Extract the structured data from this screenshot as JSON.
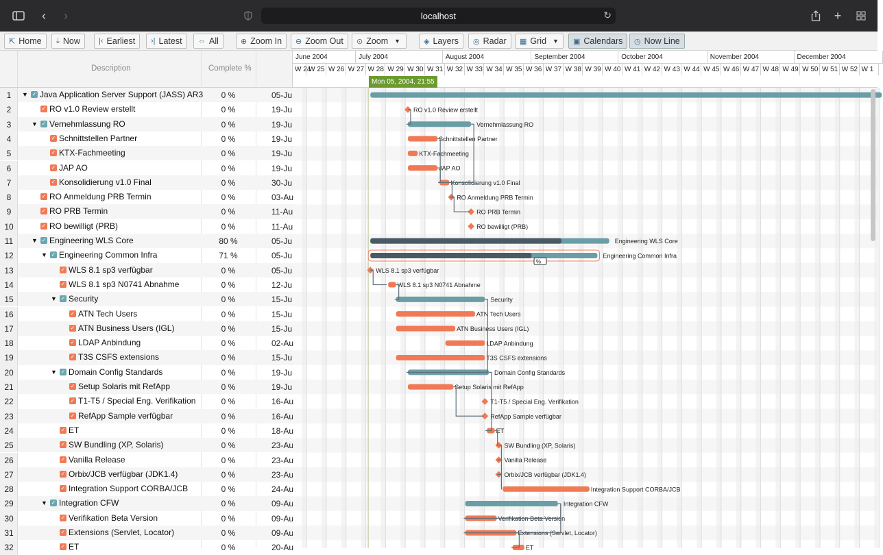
{
  "browser": {
    "url": "localhost"
  },
  "toolbar": {
    "buttons": [
      {
        "label": "Home",
        "icon": "home-icon"
      },
      {
        "label": "Now",
        "icon": "now-icon"
      },
      {
        "label": "Earliest",
        "icon": "earliest-icon"
      },
      {
        "label": "Latest",
        "icon": "latest-icon"
      },
      {
        "label": "All",
        "icon": "all-icon"
      },
      {
        "label": "Zoom In",
        "icon": "zoom-in-icon"
      },
      {
        "label": "Zoom Out",
        "icon": "zoom-out-icon"
      },
      {
        "label": "Zoom",
        "icon": "zoom-icon"
      },
      {
        "label": "Layers",
        "icon": "layers-icon"
      },
      {
        "label": "Radar",
        "icon": "radar-icon"
      },
      {
        "label": "Grid",
        "icon": "grid-icon"
      },
      {
        "label": "Calendars",
        "icon": "calendar-icon"
      },
      {
        "label": "Now Line",
        "icon": "clock-icon"
      }
    ]
  },
  "grid": {
    "headers": {
      "description": "Description",
      "complete": "Complete %"
    },
    "rows": [
      {
        "num": "1",
        "desc": "Java Application Server Support (JASS) AR3",
        "pct": "0 %",
        "start": "05-Ju",
        "level": 0,
        "toggle": true,
        "summary": true
      },
      {
        "num": "2",
        "desc": "RO v1.0 Review erstellt",
        "pct": "0 %",
        "start": "19-Ju",
        "level": 1,
        "toggle": false,
        "summary": false
      },
      {
        "num": "3",
        "desc": "Vernehmlassung RO",
        "pct": "0 %",
        "start": "19-Ju",
        "level": 1,
        "toggle": true,
        "summary": true
      },
      {
        "num": "4",
        "desc": "Schnittstellen Partner",
        "pct": "0 %",
        "start": "19-Ju",
        "level": 2,
        "toggle": false,
        "summary": false
      },
      {
        "num": "5",
        "desc": "KTX-Fachmeeting",
        "pct": "0 %",
        "start": "19-Ju",
        "level": 2,
        "toggle": false,
        "summary": false
      },
      {
        "num": "6",
        "desc": "JAP AO",
        "pct": "0 %",
        "start": "19-Ju",
        "level": 2,
        "toggle": false,
        "summary": false
      },
      {
        "num": "7",
        "desc": "Konsolidierung v1.0 Final",
        "pct": "0 %",
        "start": "30-Ju",
        "level": 2,
        "toggle": false,
        "summary": false
      },
      {
        "num": "8",
        "desc": "RO Anmeldung PRB Termin",
        "pct": "0 %",
        "start": "03-Au",
        "level": 1,
        "toggle": false,
        "summary": false
      },
      {
        "num": "9",
        "desc": "RO PRB Termin",
        "pct": "0 %",
        "start": "11-Au",
        "level": 1,
        "toggle": false,
        "summary": false
      },
      {
        "num": "10",
        "desc": "RO bewilligt (PRB)",
        "pct": "0 %",
        "start": "11-Au",
        "level": 1,
        "toggle": false,
        "summary": false
      },
      {
        "num": "11",
        "desc": "Engineering WLS Core",
        "pct": "80 %",
        "start": "05-Ju",
        "level": 1,
        "toggle": true,
        "summary": true
      },
      {
        "num": "12",
        "desc": "Engineering Common Infra",
        "pct": "71 %",
        "start": "05-Ju",
        "level": 2,
        "toggle": true,
        "summary": true
      },
      {
        "num": "13",
        "desc": "WLS 8.1 sp3 verfügbar",
        "pct": "0 %",
        "start": "05-Ju",
        "level": 3,
        "toggle": false,
        "summary": false
      },
      {
        "num": "14",
        "desc": "WLS 8.1 sp3 N0741 Abnahme",
        "pct": "0 %",
        "start": "12-Ju",
        "level": 3,
        "toggle": false,
        "summary": false
      },
      {
        "num": "15",
        "desc": "Security",
        "pct": "0 %",
        "start": "15-Ju",
        "level": 3,
        "toggle": true,
        "summary": true
      },
      {
        "num": "16",
        "desc": "ATN Tech Users",
        "pct": "0 %",
        "start": "15-Ju",
        "level": 4,
        "toggle": false,
        "summary": false
      },
      {
        "num": "17",
        "desc": "ATN Business Users (IGL)",
        "pct": "0 %",
        "start": "15-Ju",
        "level": 4,
        "toggle": false,
        "summary": false
      },
      {
        "num": "18",
        "desc": "LDAP Anbindung",
        "pct": "0 %",
        "start": "02-Au",
        "level": 4,
        "toggle": false,
        "summary": false
      },
      {
        "num": "19",
        "desc": "T3S CSFS extensions",
        "pct": "0 %",
        "start": "15-Ju",
        "level": 4,
        "toggle": false,
        "summary": false
      },
      {
        "num": "20",
        "desc": "Domain Config Standards",
        "pct": "0 %",
        "start": "19-Ju",
        "level": 3,
        "toggle": true,
        "summary": true
      },
      {
        "num": "21",
        "desc": "Setup Solaris mit RefApp",
        "pct": "0 %",
        "start": "19-Ju",
        "level": 4,
        "toggle": false,
        "summary": false
      },
      {
        "num": "22",
        "desc": "T1-T5 / Special Eng. Verifikation",
        "pct": "0 %",
        "start": "16-Au",
        "level": 4,
        "toggle": false,
        "summary": false
      },
      {
        "num": "23",
        "desc": "RefApp Sample verfügbar",
        "pct": "0 %",
        "start": "16-Au",
        "level": 4,
        "toggle": false,
        "summary": false
      },
      {
        "num": "24",
        "desc": "ET",
        "pct": "0 %",
        "start": "18-Au",
        "level": 3,
        "toggle": false,
        "summary": false
      },
      {
        "num": "25",
        "desc": "SW Bundling (XP, Solaris)",
        "pct": "0 %",
        "start": "23-Au",
        "level": 3,
        "toggle": false,
        "summary": false
      },
      {
        "num": "26",
        "desc": "Vanilla Release",
        "pct": "0 %",
        "start": "23-Au",
        "level": 3,
        "toggle": false,
        "summary": false
      },
      {
        "num": "27",
        "desc": "Orbix/JCB verfügbar (JDK1.4)",
        "pct": "0 %",
        "start": "23-Au",
        "level": 3,
        "toggle": false,
        "summary": false
      },
      {
        "num": "28",
        "desc": "Integration Support CORBA/JCB",
        "pct": "0 %",
        "start": "24-Au",
        "level": 3,
        "toggle": false,
        "summary": false
      },
      {
        "num": "29",
        "desc": "Integration CFW",
        "pct": "0 %",
        "start": "09-Au",
        "level": 2,
        "toggle": true,
        "summary": true
      },
      {
        "num": "30",
        "desc": "Verifikation Beta Version",
        "pct": "0 %",
        "start": "09-Au",
        "level": 3,
        "toggle": false,
        "summary": false
      },
      {
        "num": "31",
        "desc": "Extensions (Servlet, Locator)",
        "pct": "0 %",
        "start": "09-Au",
        "level": 3,
        "toggle": false,
        "summary": false
      },
      {
        "num": "32",
        "desc": "ET",
        "pct": "0 %",
        "start": "20-Au",
        "level": 3,
        "toggle": false,
        "summary": false
      }
    ]
  },
  "timeline": {
    "now_label": "Mon 05, 2004, 21:55",
    "months": [
      "June 2004",
      "July 2004",
      "August 2004",
      "September 2004",
      "October 2004",
      "November 2004",
      "December 2004"
    ],
    "weeks": [
      "W 24",
      "W 25",
      "W 26",
      "W 27",
      "W 28",
      "W 29",
      "W 30",
      "W 31",
      "W 32",
      "W 33",
      "W 34",
      "W 35",
      "W 36",
      "W 37",
      "W 38",
      "W 39",
      "W 40",
      "W 41",
      "W 42",
      "W 43",
      "W 44",
      "W 45",
      "W 46",
      "W 47",
      "W 48",
      "W 49",
      "W 50",
      "W 51",
      "W 52",
      "W 1"
    ],
    "colors": {
      "summary": "#6a9ea6",
      "summary_dark": "#4a5a64",
      "task": "#f07a55",
      "link": "#5f6f78"
    },
    "bars": [
      {
        "row": 0,
        "type": "summary",
        "start_week": 4.1,
        "end_week": 30.0,
        "label": ""
      },
      {
        "row": 1,
        "type": "milestone",
        "start_week": 6.0,
        "label": "RO v1.0 Review erstellt"
      },
      {
        "row": 2,
        "type": "summary",
        "start_week": 6.0,
        "end_week": 9.2,
        "label": "Vernehmlassung RO"
      },
      {
        "row": 3,
        "type": "task",
        "start_week": 6.0,
        "end_week": 7.5,
        "label": "Schnittstellen Partner"
      },
      {
        "row": 4,
        "type": "task",
        "start_week": 6.0,
        "end_week": 6.5,
        "label": "KTX-Fachmeeting"
      },
      {
        "row": 5,
        "type": "task",
        "start_week": 6.0,
        "end_week": 7.5,
        "label": "JAP AO"
      },
      {
        "row": 6,
        "type": "task",
        "start_week": 7.6,
        "end_week": 8.1,
        "label": "Konsolidierung v1.0 Final"
      },
      {
        "row": 7,
        "type": "milestone",
        "start_week": 8.2,
        "label": "RO Anmeldung PRB Termin"
      },
      {
        "row": 8,
        "type": "milestone",
        "start_week": 9.2,
        "label": "RO PRB Termin"
      },
      {
        "row": 9,
        "type": "milestone",
        "start_week": 9.2,
        "label": "RO bewilligt (PRB)"
      },
      {
        "row": 10,
        "type": "summary",
        "start_week": 4.1,
        "end_week": 16.2,
        "progress": 80,
        "label": "Engineering WLS Core"
      },
      {
        "row": 11,
        "type": "summary",
        "start_week": 4.1,
        "end_week": 15.6,
        "progress": 71,
        "label": "Engineering Common Infra"
      },
      {
        "row": 12,
        "type": "milestone",
        "start_week": 4.1,
        "label": "WLS 8.1 sp3 verfügbar"
      },
      {
        "row": 13,
        "type": "task",
        "start_week": 5.0,
        "end_week": 5.4,
        "label": "WLS 8.1 sp3 N0741 Abnahme"
      },
      {
        "row": 14,
        "type": "summary",
        "start_week": 5.4,
        "end_week": 9.9,
        "label": "Security"
      },
      {
        "row": 15,
        "type": "task",
        "start_week": 5.4,
        "end_week": 9.4,
        "label": "ATN Tech Users"
      },
      {
        "row": 16,
        "type": "task",
        "start_week": 5.4,
        "end_week": 8.4,
        "label": "ATN Business Users (IGL)"
      },
      {
        "row": 17,
        "type": "task",
        "start_week": 7.9,
        "end_week": 9.9,
        "label": "LDAP Anbindung"
      },
      {
        "row": 18,
        "type": "task",
        "start_week": 5.4,
        "end_week": 9.9,
        "label": "T3S CSFS extensions"
      },
      {
        "row": 19,
        "type": "summary",
        "start_week": 6.0,
        "end_week": 10.1,
        "label": "Domain Config Standards"
      },
      {
        "row": 20,
        "type": "task",
        "start_week": 6.0,
        "end_week": 8.3,
        "label": "Setup Solaris mit RefApp"
      },
      {
        "row": 21,
        "type": "milestone",
        "start_week": 9.9,
        "label": "T1-T5 / Special Eng. Verifikation"
      },
      {
        "row": 22,
        "type": "milestone",
        "start_week": 9.9,
        "label": "RefApp Sample verfügbar"
      },
      {
        "row": 23,
        "type": "task",
        "start_week": 10.0,
        "end_week": 10.4,
        "label": "ET"
      },
      {
        "row": 24,
        "type": "milestone",
        "start_week": 10.6,
        "label": "SW Bundling (XP, Solaris)"
      },
      {
        "row": 25,
        "type": "milestone",
        "start_week": 10.6,
        "label": "Vanilla Release"
      },
      {
        "row": 26,
        "type": "milestone",
        "start_week": 10.6,
        "label": "Orbix/JCB verfügbar (JDK1.4)"
      },
      {
        "row": 27,
        "type": "task",
        "start_week": 10.8,
        "end_week": 15.2,
        "label": "Integration Support CORBA/JCB"
      },
      {
        "row": 28,
        "type": "summary",
        "start_week": 8.9,
        "end_week": 13.6,
        "label": "Integration CFW"
      },
      {
        "row": 29,
        "type": "task",
        "start_week": 8.9,
        "end_week": 10.5,
        "label": "Verifikation Beta Version"
      },
      {
        "row": 30,
        "type": "task",
        "start_week": 8.9,
        "end_week": 11.5,
        "label": "Extensions (Servlet, Locator)"
      },
      {
        "row": 31,
        "type": "task",
        "start_week": 11.3,
        "end_week": 11.9,
        "label": "ET"
      }
    ]
  }
}
